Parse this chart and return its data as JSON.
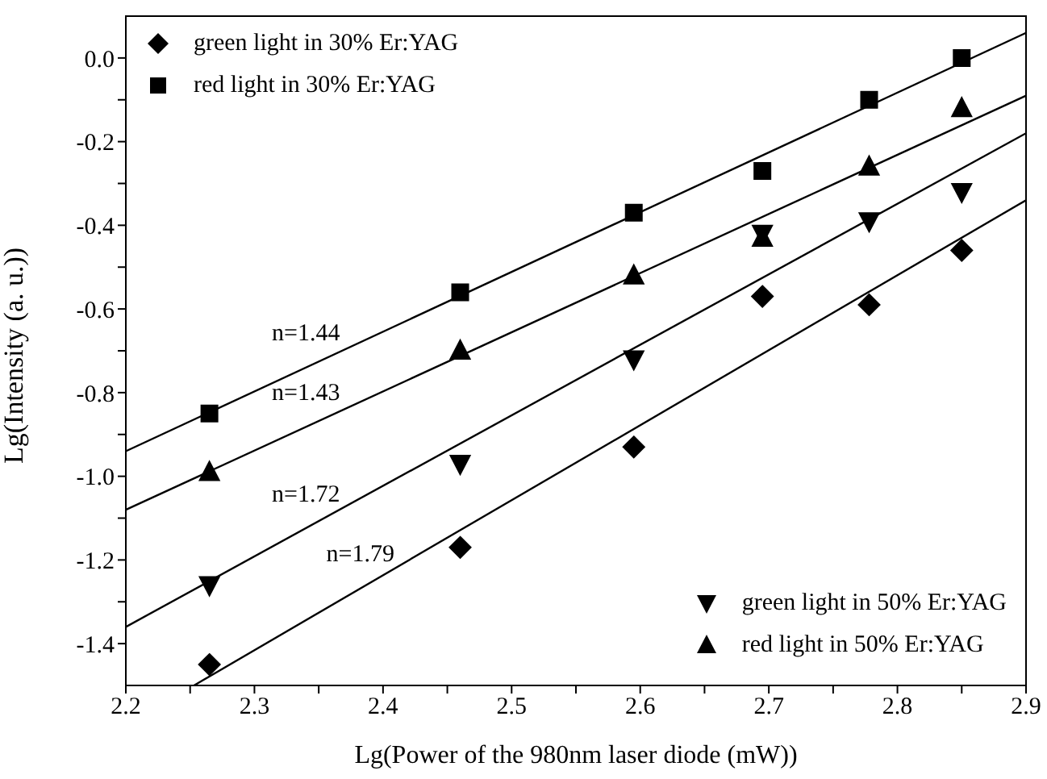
{
  "chart_data": {
    "type": "scatter",
    "xlabel": "Lg(Power of the 980nm laser diode (mW))",
    "ylabel": "Lg(Intensity (a. u.))",
    "x": [
      2.265,
      2.46,
      2.595,
      2.695,
      2.778,
      2.85
    ],
    "series": [
      {
        "name": "green light in 30% Er:YAG",
        "color": "#000000",
        "marker": "diamond",
        "values": [
          -1.45,
          -1.17,
          -0.93,
          -0.57,
          -0.59,
          -0.46
        ]
      },
      {
        "name": "red light in 30% Er:YAG",
        "color": "#000000",
        "marker": "square",
        "values": [
          -0.85,
          -0.56,
          -0.37,
          -0.27,
          -0.1,
          0.0
        ]
      },
      {
        "name": "green light in 50% Er:YAG",
        "color": "#000000",
        "marker": "triangle-down",
        "values": [
          -1.26,
          -0.97,
          -0.72,
          -0.42,
          -0.39,
          -0.32
        ]
      },
      {
        "name": "red light in 50% Er:YAG",
        "color": "#000000",
        "marker": "triangle",
        "values": [
          -0.99,
          -0.7,
          -0.52,
          -0.43,
          -0.26,
          -0.12
        ]
      },
      {
        "type": "line",
        "color": "#000000",
        "x": [
          2.2,
          2.9
        ],
        "values": [
          -0.94,
          0.06
        ]
      },
      {
        "type": "line",
        "color": "#000000",
        "x": [
          2.2,
          2.9
        ],
        "values": [
          -1.08,
          -0.09
        ]
      },
      {
        "type": "line",
        "color": "#000000",
        "x": [
          2.2,
          2.9
        ],
        "values": [
          -1.36,
          -0.18
        ]
      },
      {
        "type": "line",
        "color": "#000000",
        "x": [
          2.253,
          2.9
        ],
        "values": [
          -1.5,
          -0.34
        ]
      }
    ],
    "annotations": [
      "n=1.44",
      "n=1.43",
      "n=1.72",
      "n=1.79"
    ],
    "xlim": [
      2.2,
      2.9
    ],
    "xticks": [
      2.2,
      {
        "value": 2.25,
        "label": null
      },
      2.3,
      {
        "value": 2.35,
        "label": null
      },
      2.4,
      {
        "value": 2.45,
        "label": null
      },
      2.5,
      {
        "value": 2.55,
        "label": null
      },
      2.6,
      {
        "value": 2.65,
        "label": null
      },
      2.7,
      {
        "value": 2.75,
        "label": null
      },
      2.8,
      {
        "value": 2.85,
        "label": null
      },
      2.9
    ],
    "ylim": [
      -1.5,
      0.1
    ],
    "yticks": [
      -1.4,
      {
        "value": -1.3,
        "label": null
      },
      -1.2,
      {
        "value": -1.1,
        "label": null
      },
      {
        "value": -1,
        "label": "-1.0"
      },
      {
        "value": -0.9,
        "label": null
      },
      -0.8,
      {
        "value": -0.7,
        "label": null
      },
      -0.6,
      {
        "value": -0.5,
        "label": null
      },
      -0.4,
      {
        "value": -0.3,
        "label": null
      },
      -0.2,
      {
        "value": -0.1,
        "label": null
      },
      {
        "value": 0,
        "label": "0.0"
      }
    ],
    "legend": "top left",
    "grid": false
  }
}
